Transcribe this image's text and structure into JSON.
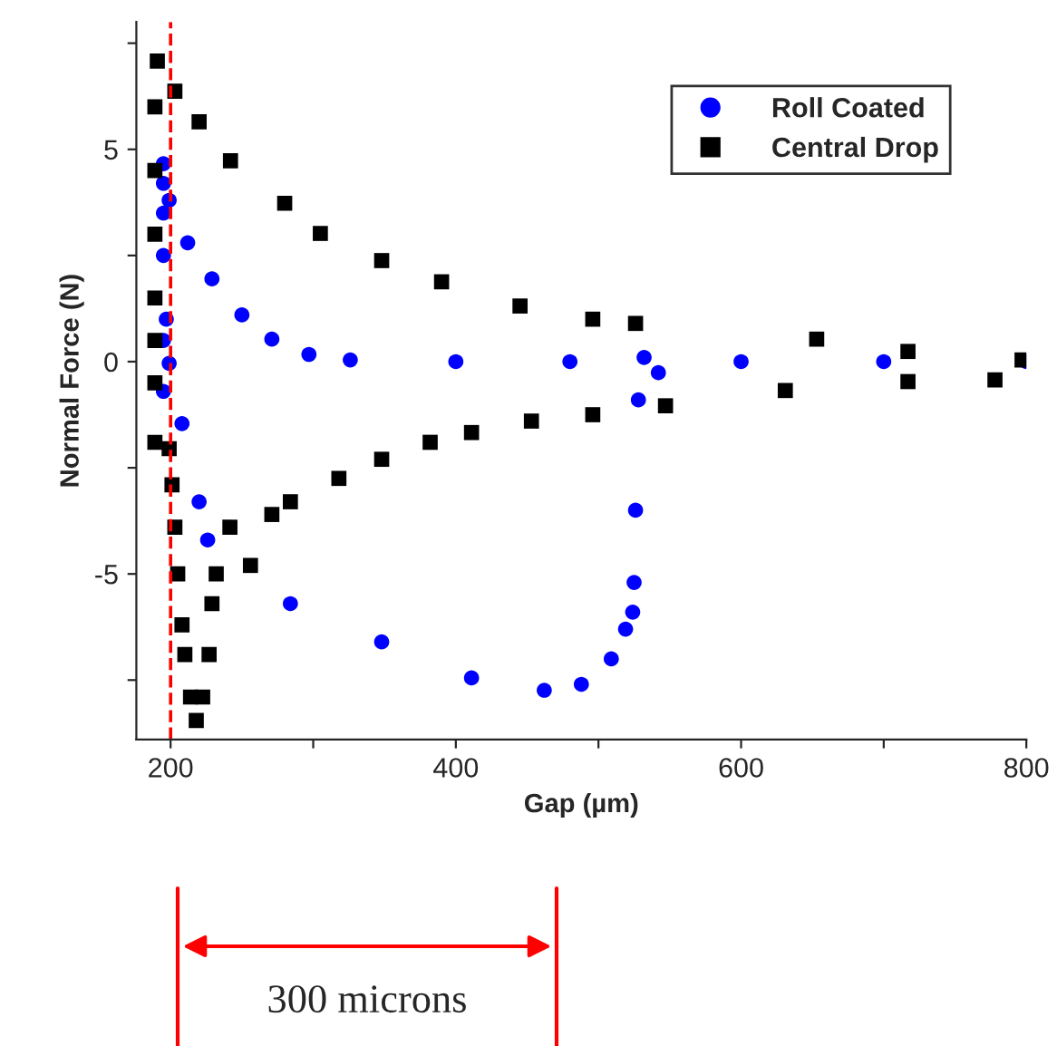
{
  "chart_data": {
    "type": "scatter",
    "xlabel": "Gap (µm)",
    "ylabel": "Normal Force (N)",
    "xlim": [
      176,
      800
    ],
    "ylim": [
      -8.9,
      8.0
    ],
    "xticks": [
      200,
      {
        "value": 300,
        "label": null
      },
      400,
      {
        "value": 500,
        "label": null
      },
      600,
      {
        "value": 700,
        "label": null
      },
      800
    ],
    "yticks": [
      {
        "value": 7.5,
        "label": null
      },
      5,
      {
        "value": 2.5,
        "label": null
      },
      0,
      {
        "value": -2.5,
        "label": null
      },
      {
        "value": -5,
        "label": "-5"
      },
      {
        "value": -7.5,
        "label": null
      }
    ],
    "grid": false,
    "legend": "top right",
    "ref_lines": [
      {
        "axis": "x",
        "value": 200,
        "color": "#ff0000",
        "line_style": "dashed"
      }
    ],
    "annotations": [
      "300 microns"
    ],
    "series": [
      {
        "name": "Roll Coated",
        "color": "#0000ff",
        "marker": "circle",
        "x": [
          195,
          195,
          197,
          195,
          195,
          195,
          195,
          199,
          212,
          229,
          250,
          271,
          297,
          326,
          400,
          480,
          542,
          600,
          700,
          800,
          199,
          208,
          220,
          226,
          284,
          348,
          411,
          462,
          488,
          509,
          519,
          524,
          525,
          526,
          528,
          532
        ],
        "values": [
          -0.7,
          0.5,
          1.0,
          2.5,
          3.5,
          4.66,
          4.2,
          3.8,
          2.8,
          1.95,
          1.1,
          0.53,
          0.17,
          0.04,
          0.0,
          0.0,
          -0.26,
          0.0,
          0.0,
          0.0,
          -0.04,
          -1.46,
          -3.3,
          -4.2,
          -5.7,
          -6.6,
          -7.45,
          -7.74,
          -7.6,
          -7.0,
          -6.3,
          -5.9,
          -5.2,
          -3.5,
          -0.9,
          0.1
        ]
      },
      {
        "name": "Central Drop",
        "color": "#000000",
        "marker": "square",
        "x": [
          190.7,
          203,
          220,
          242,
          280,
          305,
          348,
          390,
          445,
          496,
          526,
          653,
          717,
          797,
          189,
          189,
          189,
          189,
          189,
          189,
          189,
          199,
          201,
          203,
          205,
          208,
          210,
          214,
          218,
          222.5,
          227,
          229,
          232,
          241.6,
          256,
          271,
          284,
          318,
          348,
          382,
          411,
          453,
          496,
          547,
          631,
          717,
          778
        ],
        "values": [
          7.08,
          6.37,
          5.65,
          4.73,
          3.73,
          3.02,
          2.38,
          1.88,
          1.31,
          1.0,
          0.9,
          0.53,
          0.24,
          0.04,
          6.0,
          4.5,
          3.0,
          1.5,
          0.5,
          -0.5,
          -1.9,
          -2.05,
          -2.9,
          -3.9,
          -5.0,
          -6.2,
          -6.9,
          -7.9,
          -8.45,
          -7.9,
          -6.9,
          -5.7,
          -5.0,
          -3.9,
          -4.8,
          -3.6,
          -3.3,
          -2.75,
          -2.3,
          -1.9,
          -1.67,
          -1.4,
          -1.25,
          -1.04,
          -0.68,
          -0.47,
          -0.43
        ]
      }
    ]
  }
}
